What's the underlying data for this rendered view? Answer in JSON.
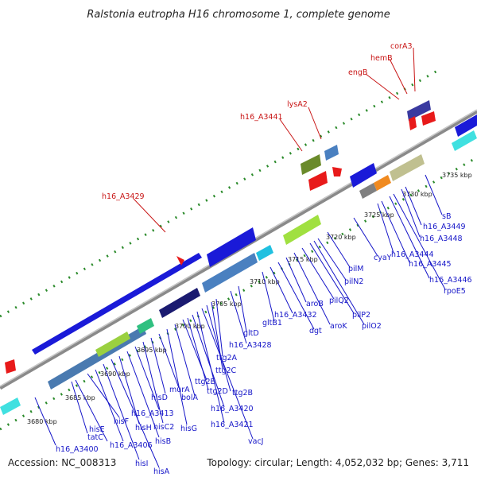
{
  "title": "Ralstonia eutropha H16 chromosome 1, complete genome",
  "footer": {
    "accession": "Accession: NC_008313",
    "stats": "Topology: circular; Length: 4,052,032 bp; Genes: 3,711"
  },
  "colors": {
    "backbone": "#8a8a8a",
    "ticks": "#2a8a2a",
    "blue_gene": "#1a1ad8",
    "red_gene": "#e81a1a",
    "blue_label": "#1515c8",
    "red_label": "#c81515"
  },
  "scale_ticks": [
    "3680 kbp",
    "3685 kbp",
    "3690 kbp",
    "3695 kbp",
    "3700 kbp",
    "3705 kbp",
    "3710 kbp",
    "3715 kbp",
    "3720 kbp",
    "3725 kbp",
    "3730 kbp",
    "3735 kbp"
  ],
  "blue_labels": [
    "h16_A3400",
    "tatC",
    "hisE",
    "hisF",
    "h16_A3406",
    "hisI",
    "hisA",
    "hisH",
    "hisB",
    "h16_A3413",
    "hisC2",
    "hisD",
    "murA",
    "hisG",
    "bolA",
    "ttg2E",
    "ttg2D",
    "h16_A3420",
    "h16_A3421",
    "vacJ",
    "ttg2B",
    "ttg2C",
    "ttg2A",
    "h16_A3428",
    "gltD",
    "gltB1",
    "h16_A3432",
    "dgt",
    "aroB",
    "aroK",
    "pilQ2",
    "pilP2",
    "pilO2",
    "pilN2",
    "pilM",
    "cyaY",
    "h16_A3444",
    "h16_A3445",
    "h16_A3446",
    "rpoE5",
    "h16_A3448",
    "h16_A3449",
    "sB"
  ],
  "red_labels": [
    "h16_A3429",
    "h16_A3441",
    "lysA2",
    "engB",
    "hemB",
    "corA3"
  ]
}
